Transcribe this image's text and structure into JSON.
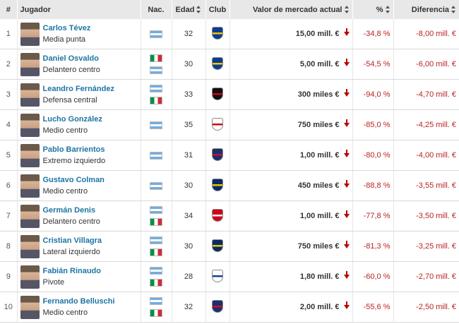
{
  "headers": {
    "num": "#",
    "player": "Jugador",
    "nat": "Nac.",
    "age": "Edad",
    "club": "Club",
    "market_value": "Valor de mercado actual",
    "percent": "%",
    "diff": "Diferencia"
  },
  "colors": {
    "link": "#1d75a3",
    "negative": "#b22222",
    "header_bg": "#e8e8e8"
  },
  "rows": [
    {
      "num": "1",
      "name": "Carlos Tévez",
      "position": "Media punta",
      "flags": [
        "argentina-flag"
      ],
      "age": "32",
      "club_icon": "boca-juniors-crest",
      "club_colors": [
        "#0a3d91",
        "#f2c200"
      ],
      "value": "15,00 mill. €",
      "pct": "-34,8 %",
      "diff": "-8,00 mill. €"
    },
    {
      "num": "2",
      "name": "Daniel Osvaldo",
      "position": "Delantero centro",
      "flags": [
        "italy-flag",
        "argentina-flag"
      ],
      "age": "30",
      "club_icon": "boca-juniors-crest",
      "club_colors": [
        "#0a3d91",
        "#f2c200"
      ],
      "value": "5,00 mill. €",
      "pct": "-54,5 %",
      "diff": "-6,00 mill. €"
    },
    {
      "num": "3",
      "name": "Leandro Fernández",
      "position": "Defensa central",
      "flags": [
        "argentina-flag",
        "italy-flag"
      ],
      "age": "33",
      "club_icon": "newells-crest",
      "club_colors": [
        "#111111",
        "#d0021b"
      ],
      "value": "300 miles €",
      "pct": "-94,0 %",
      "diff": "-4,70 mill. €"
    },
    {
      "num": "4",
      "name": "Lucho González",
      "position": "Medio centro",
      "flags": [
        "argentina-flag"
      ],
      "age": "35",
      "club_icon": "river-plate-crest",
      "club_colors": [
        "#ffffff",
        "#d0021b"
      ],
      "value": "750 miles €",
      "pct": "-85,0 %",
      "diff": "-4,25 mill. €"
    },
    {
      "num": "5",
      "name": "Pablo Barrientos",
      "position": "Extremo izquierdo",
      "flags": [
        "argentina-flag"
      ],
      "age": "31",
      "club_icon": "san-lorenzo-crest",
      "club_colors": [
        "#1c2f6e",
        "#c8102e"
      ],
      "value": "1,00 mill. €",
      "pct": "-80,0 %",
      "diff": "-4,00 mill. €"
    },
    {
      "num": "6",
      "name": "Gustavo Colman",
      "position": "Medio centro",
      "flags": [
        "argentina-flag"
      ],
      "age": "30",
      "club_icon": "rosario-central-crest",
      "club_colors": [
        "#0a2a66",
        "#f2c200"
      ],
      "value": "450 miles €",
      "pct": "-88,8 %",
      "diff": "-3,55 mill. €"
    },
    {
      "num": "7",
      "name": "Germán Denis",
      "position": "Delantero centro",
      "flags": [
        "argentina-flag",
        "italy-flag"
      ],
      "age": "34",
      "club_icon": "independiente-crest",
      "club_colors": [
        "#d0021b",
        "#ffffff"
      ],
      "value": "1,00 mill. €",
      "pct": "-77,8 %",
      "diff": "-3,50 mill. €"
    },
    {
      "num": "8",
      "name": "Cristian Villagra",
      "position": "Lateral izquierdo",
      "flags": [
        "argentina-flag",
        "italy-flag"
      ],
      "age": "30",
      "club_icon": "rosario-central-crest",
      "club_colors": [
        "#0a2a66",
        "#f2c200"
      ],
      "value": "750 miles €",
      "pct": "-81,3 %",
      "diff": "-3,25 mill. €"
    },
    {
      "num": "9",
      "name": "Fabián Rinaudo",
      "position": "Pivote",
      "flags": [
        "argentina-flag",
        "italy-flag"
      ],
      "age": "28",
      "club_icon": "gimnasia-crest",
      "club_colors": [
        "#ffffff",
        "#1c3f8c"
      ],
      "value": "1,80 mill. €",
      "pct": "-60,0 %",
      "diff": "-2,70 mill. €"
    },
    {
      "num": "10",
      "name": "Fernando Belluschi",
      "position": "Medio centro",
      "flags": [
        "argentina-flag",
        "italy-flag"
      ],
      "age": "32",
      "club_icon": "san-lorenzo-crest",
      "club_colors": [
        "#1c2f6e",
        "#c8102e"
      ],
      "value": "2,00 mill. €",
      "pct": "-55,6 %",
      "diff": "-2,50 mill. €"
    }
  ]
}
